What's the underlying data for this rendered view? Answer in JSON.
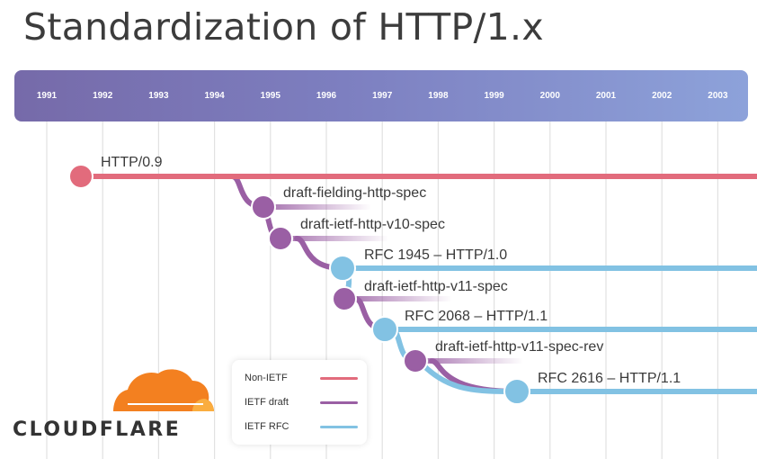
{
  "title": "Standardization of HTTP/1.x",
  "years": [
    "1991",
    "1992",
    "1993",
    "1994",
    "1995",
    "1996",
    "1997",
    "1998",
    "1999",
    "2000",
    "2001",
    "2002",
    "2003"
  ],
  "colors": {
    "non_ietf": "#e26b7c",
    "ietf_draft": "#9a5fa4",
    "ietf_rfc": "#82c2e3"
  },
  "items": [
    {
      "label": "HTTP/0.9",
      "kind": "non_ietf"
    },
    {
      "label": "draft-fielding-http-spec",
      "kind": "ietf_draft"
    },
    {
      "label": "draft-ietf-http-v10-spec",
      "kind": "ietf_draft"
    },
    {
      "label": "RFC 1945 – HTTP/1.0",
      "kind": "ietf_rfc"
    },
    {
      "label": "draft-ietf-http-v11-spec",
      "kind": "ietf_draft"
    },
    {
      "label": "RFC 2068 – HTTP/1.1",
      "kind": "ietf_rfc"
    },
    {
      "label": "draft-ietf-http-v11-spec-rev",
      "kind": "ietf_draft"
    },
    {
      "label": "RFC 2616 – HTTP/1.1",
      "kind": "ietf_rfc"
    }
  ],
  "legend": [
    {
      "label": "Non-IETF",
      "kind": "non_ietf"
    },
    {
      "label": "IETF draft",
      "kind": "ietf_draft"
    },
    {
      "label": "IETF RFC",
      "kind": "ietf_rfc"
    }
  ],
  "logo": {
    "text": "CLOUDFLARE",
    "icon": "cloud-icon",
    "color": "#f38020"
  }
}
